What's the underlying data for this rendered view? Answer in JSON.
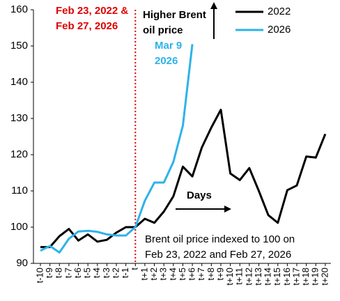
{
  "chart_data": {
    "type": "line",
    "categories": [
      "t-10",
      "t-9",
      "t-8",
      "t-7",
      "t-6",
      "t-5",
      "t-4",
      "t-3",
      "t-2",
      "t-1",
      "t",
      "t+1",
      "t+2",
      "t+3",
      "t+4",
      "t+5",
      "t+6",
      "t+7",
      "t+8",
      "t+9",
      "t+10",
      "t+11",
      "t+12",
      "t+13",
      "t+14",
      "t+15",
      "t+16",
      "t+17",
      "t+18",
      "t+19",
      "t+20"
    ],
    "series": [
      {
        "name": "2022",
        "color": "#000000",
        "values": [
          94.5,
          94.5,
          97.5,
          99.5,
          96.3,
          98,
          96,
          96.5,
          98.5,
          100,
          100,
          102.3,
          101.2,
          104.3,
          108.5,
          116.7,
          114,
          122,
          127.5,
          132.4,
          114.8,
          113,
          116.3,
          110,
          103.3,
          101.2,
          110.2,
          111.5,
          119.5,
          119.2,
          125.7
        ]
      },
      {
        "name": "2026",
        "color": "#2eb2ea",
        "values": [
          93.5,
          94.8,
          93,
          96.8,
          98.8,
          99,
          98.7,
          98,
          97.7,
          97.7,
          100,
          107.3,
          112.3,
          112.3,
          118,
          128,
          150.5,
          null,
          null,
          null,
          null,
          null,
          null,
          null,
          null,
          null,
          null,
          null,
          null,
          null,
          null
        ]
      }
    ],
    "ylim": [
      90,
      160
    ],
    "yticks": [
      90,
      100,
      110,
      120,
      130,
      140,
      150,
      160
    ],
    "grid": false,
    "legend": "upper right",
    "event_line": {
      "category": "t",
      "color": "#e00000",
      "lines": [
        "Feb 23, 2022 &",
        "Feb 27, 2026"
      ]
    },
    "annotations": [
      {
        "lines": [
          "Higher Brent",
          "oil price"
        ],
        "color": "#000000"
      },
      {
        "lines": [
          "Mar 9",
          "2026"
        ],
        "color": "#2eb2ea"
      },
      {
        "lines": [
          "Days"
        ],
        "color": "#000000"
      },
      {
        "lines": [
          "Brent oil price indexed to 100 on",
          "Feb 23, 2022 and Feb 27, 2026"
        ],
        "color": "#000000"
      }
    ]
  }
}
